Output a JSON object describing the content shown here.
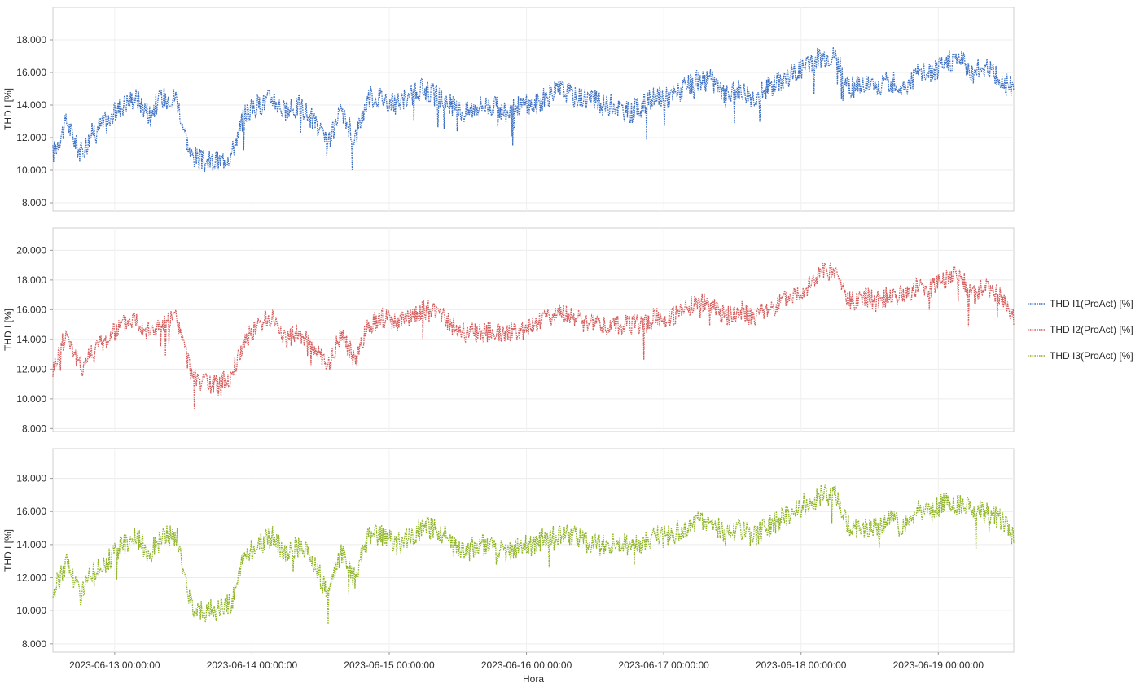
{
  "chart_data": {
    "type": "line",
    "xlabel": "Hora",
    "x_tick_labels": [
      "2023-06-13 00:00:00",
      "2023-06-14 00:00:00",
      "2023-06-15 00:00:00",
      "2023-06-16 00:00:00",
      "2023-06-17 00:00:00",
      "2023-06-18 00:00:00",
      "2023-06-19 00:00:00"
    ],
    "x_range_days": [
      -0.45,
      6.55
    ],
    "legend_position": "right",
    "panels": [
      {
        "ylabel": "THD I [%]",
        "ylim": [
          7.5,
          20.0
        ],
        "yticks": [
          "8.000",
          "10.000",
          "12.000",
          "14.000",
          "16.000",
          "18.000"
        ],
        "series": {
          "name": "THD I1(ProAct) [%]",
          "color": "#3a6fc4",
          "line_style": "dotted",
          "x": [
            -0.45,
            -0.35,
            -0.25,
            -0.15,
            -0.05,
            0.05,
            0.15,
            0.25,
            0.35,
            0.45,
            0.55,
            0.65,
            0.75,
            0.85,
            0.95,
            1.05,
            1.15,
            1.25,
            1.35,
            1.45,
            1.55,
            1.65,
            1.75,
            1.85,
            1.95,
            2.05,
            2.15,
            2.25,
            2.35,
            2.45,
            2.55,
            2.65,
            2.75,
            2.85,
            2.95,
            3.05,
            3.15,
            3.25,
            3.35,
            3.45,
            3.55,
            3.65,
            3.75,
            3.85,
            3.95,
            4.05,
            4.15,
            4.25,
            4.35,
            4.45,
            4.55,
            4.65,
            4.75,
            4.85,
            4.95,
            5.05,
            5.15,
            5.25,
            5.35,
            5.45,
            5.55,
            5.65,
            5.75,
            5.85,
            5.95,
            6.05,
            6.15,
            6.25,
            6.35,
            6.45,
            6.55
          ],
          "values": [
            11.0,
            13.0,
            11.0,
            12.5,
            13.0,
            14.0,
            14.5,
            13.5,
            14.5,
            14.5,
            11.0,
            10.5,
            10.5,
            11.0,
            13.5,
            14.0,
            14.5,
            13.5,
            14.0,
            13.0,
            11.5,
            13.5,
            12.0,
            14.5,
            14.5,
            14.0,
            14.5,
            15.0,
            14.5,
            14.0,
            13.5,
            14.0,
            14.0,
            13.5,
            14.0,
            14.0,
            14.5,
            15.0,
            14.5,
            14.5,
            14.0,
            14.0,
            13.5,
            14.0,
            14.5,
            14.5,
            15.0,
            15.5,
            15.5,
            14.5,
            15.0,
            14.5,
            15.0,
            15.5,
            16.0,
            16.5,
            17.0,
            17.0,
            15.0,
            15.5,
            15.0,
            15.5,
            15.0,
            16.0,
            16.0,
            16.5,
            17.0,
            16.0,
            16.5,
            15.5,
            15.0
          ]
        }
      },
      {
        "ylabel": "THD I [%]",
        "ylim": [
          7.8,
          21.5
        ],
        "yticks": [
          "8.000",
          "10.000",
          "12.000",
          "14.000",
          "16.000",
          "18.000",
          "20.000"
        ],
        "series": {
          "name": "THD I2(ProAct) [%]",
          "color": "#d55a5a",
          "line_style": "dotted",
          "x": [
            -0.45,
            -0.35,
            -0.25,
            -0.15,
            -0.05,
            0.05,
            0.15,
            0.25,
            0.35,
            0.45,
            0.55,
            0.65,
            0.75,
            0.85,
            0.95,
            1.05,
            1.15,
            1.25,
            1.35,
            1.45,
            1.55,
            1.65,
            1.75,
            1.85,
            1.95,
            2.05,
            2.15,
            2.25,
            2.35,
            2.45,
            2.55,
            2.65,
            2.75,
            2.85,
            2.95,
            3.05,
            3.15,
            3.25,
            3.35,
            3.45,
            3.55,
            3.65,
            3.75,
            3.85,
            3.95,
            4.05,
            4.15,
            4.25,
            4.35,
            4.45,
            4.55,
            4.65,
            4.75,
            4.85,
            4.95,
            5.05,
            5.15,
            5.25,
            5.35,
            5.45,
            5.55,
            5.65,
            5.75,
            5.85,
            5.95,
            6.05,
            6.15,
            6.25,
            6.35,
            6.45,
            6.55
          ],
          "values": [
            12.0,
            14.5,
            12.0,
            13.5,
            14.0,
            15.0,
            15.5,
            14.5,
            15.0,
            15.5,
            12.0,
            11.0,
            11.0,
            11.5,
            14.0,
            15.0,
            15.5,
            14.0,
            14.5,
            13.5,
            12.0,
            14.5,
            12.5,
            15.0,
            15.5,
            15.0,
            15.5,
            16.0,
            16.0,
            15.0,
            14.5,
            14.5,
            14.5,
            14.5,
            14.5,
            15.0,
            15.5,
            16.0,
            15.5,
            15.0,
            15.0,
            15.0,
            15.0,
            15.0,
            15.5,
            15.5,
            16.0,
            16.5,
            16.5,
            15.5,
            16.0,
            15.5,
            16.0,
            16.5,
            17.0,
            17.5,
            18.5,
            18.5,
            16.5,
            17.0,
            16.5,
            17.0,
            17.0,
            17.5,
            17.5,
            18.0,
            18.5,
            17.0,
            17.5,
            17.0,
            15.5
          ]
        }
      },
      {
        "ylabel": "THD I [%]",
        "ylim": [
          7.5,
          19.8
        ],
        "yticks": [
          "8.000",
          "10.000",
          "12.000",
          "14.000",
          "16.000",
          "18.000"
        ],
        "series": {
          "name": "THD I3(ProAct) [%]",
          "color": "#8cb321",
          "line_style": "dotted",
          "x": [
            -0.45,
            -0.35,
            -0.25,
            -0.15,
            -0.05,
            0.05,
            0.15,
            0.25,
            0.35,
            0.45,
            0.55,
            0.65,
            0.75,
            0.85,
            0.95,
            1.05,
            1.15,
            1.25,
            1.35,
            1.45,
            1.55,
            1.65,
            1.75,
            1.85,
            1.95,
            2.05,
            2.15,
            2.25,
            2.35,
            2.45,
            2.55,
            2.65,
            2.75,
            2.85,
            2.95,
            3.05,
            3.15,
            3.25,
            3.35,
            3.45,
            3.55,
            3.65,
            3.75,
            3.85,
            3.95,
            4.05,
            4.15,
            4.25,
            4.35,
            4.45,
            4.55,
            4.65,
            4.75,
            4.85,
            4.95,
            5.05,
            5.15,
            5.25,
            5.35,
            5.45,
            5.55,
            5.65,
            5.75,
            5.85,
            5.95,
            6.05,
            6.15,
            6.25,
            6.35,
            6.45,
            6.55
          ],
          "values": [
            11.0,
            13.0,
            11.0,
            12.5,
            13.0,
            14.0,
            14.5,
            13.5,
            14.5,
            14.5,
            10.5,
            10.0,
            10.0,
            10.5,
            13.5,
            14.0,
            14.5,
            13.5,
            14.0,
            13.0,
            11.0,
            13.5,
            12.0,
            14.5,
            14.5,
            14.0,
            14.5,
            15.0,
            15.0,
            14.0,
            13.5,
            14.0,
            14.0,
            13.5,
            14.0,
            14.0,
            14.5,
            14.5,
            14.5,
            14.0,
            14.0,
            14.0,
            14.0,
            14.0,
            14.5,
            14.5,
            15.0,
            15.5,
            15.5,
            14.5,
            15.0,
            14.5,
            15.0,
            15.5,
            16.0,
            16.5,
            17.0,
            17.0,
            15.0,
            15.0,
            15.0,
            15.5,
            15.0,
            16.0,
            16.0,
            16.5,
            16.5,
            16.0,
            16.0,
            15.5,
            14.5
          ]
        }
      }
    ]
  }
}
